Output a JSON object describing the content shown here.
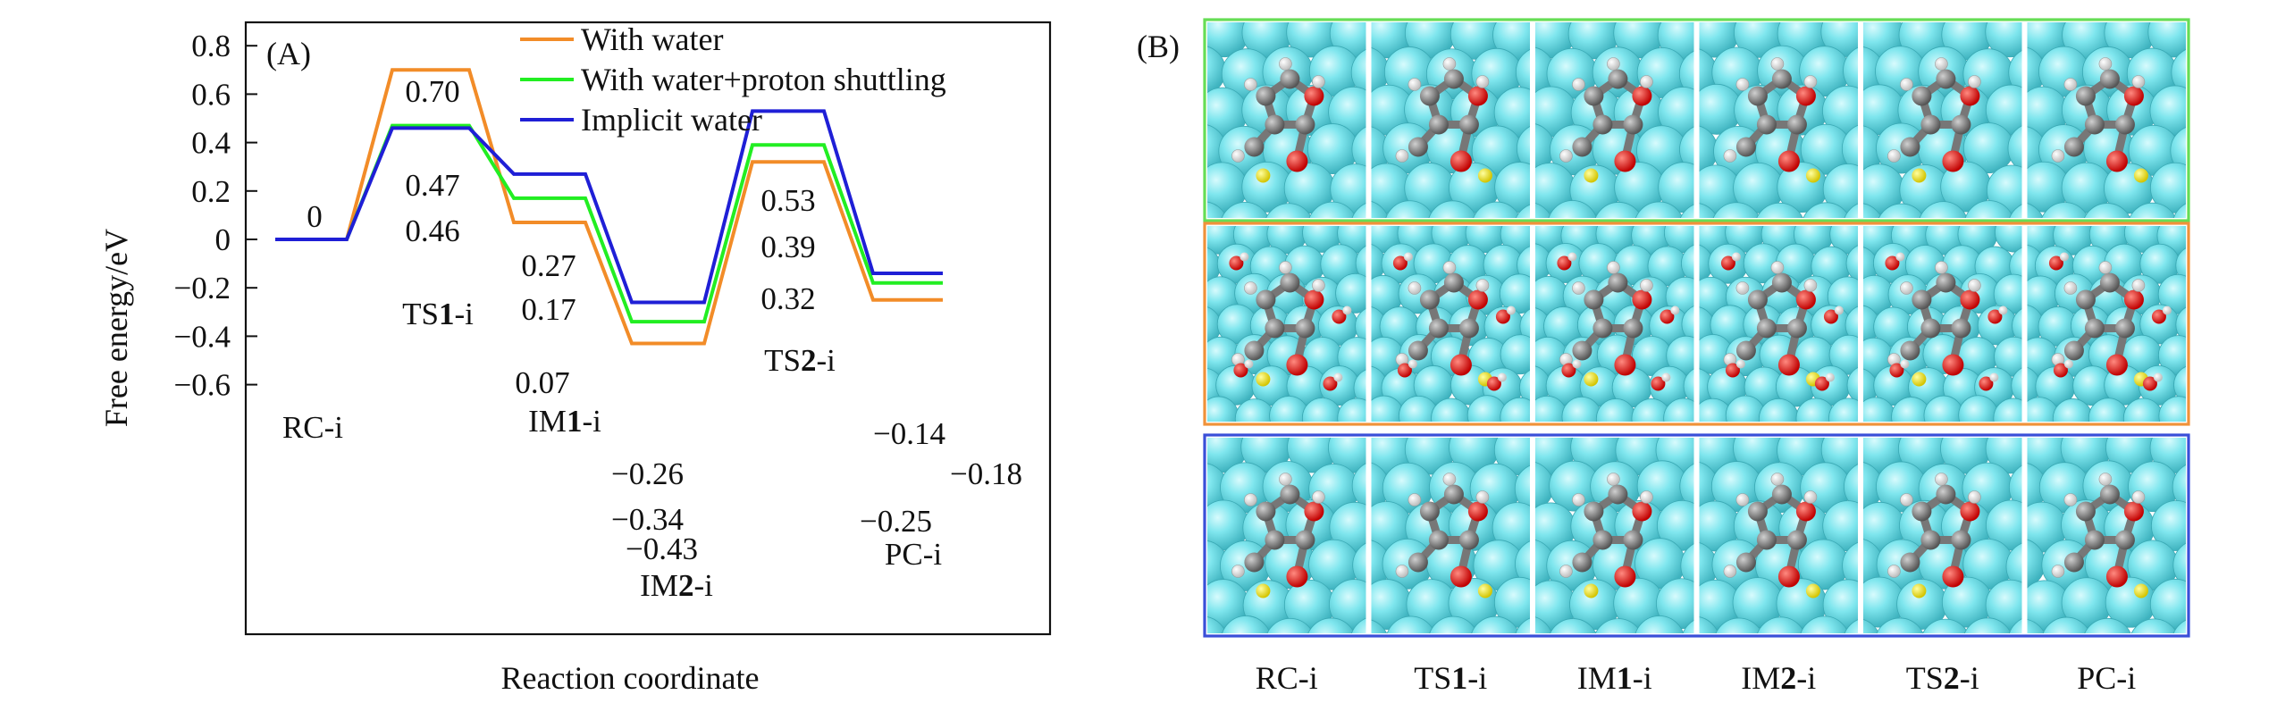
{
  "panel_a": {
    "label": "(A)",
    "chart_data": {
      "type": "line",
      "subtype": "energy-profile",
      "title": "",
      "xlabel": "Reaction coordinate",
      "ylabel": "Free energy/eV",
      "ylim": [
        -0.6,
        0.9
      ],
      "yticks": [
        -0.6,
        -0.4,
        -0.2,
        0,
        0.2,
        0.4,
        0.6,
        0.8
      ],
      "ytick_labels": [
        "−0.6",
        "−0.4",
        "−0.2",
        "0",
        "0.2",
        "0.4",
        "0.6",
        "0.8"
      ],
      "states": [
        "RC-i",
        "TS1-i",
        "IM1-i",
        "IM2-i",
        "TS2-i",
        "PC-i"
      ],
      "state_labels": [
        {
          "pre": "RC-i",
          "bold": "",
          "post": ""
        },
        {
          "pre": "TS",
          "bold": "1",
          "post": "-i"
        },
        {
          "pre": "IM",
          "bold": "1",
          "post": "-i"
        },
        {
          "pre": "IM",
          "bold": "2",
          "post": "-i"
        },
        {
          "pre": "TS",
          "bold": "2",
          "post": "-i"
        },
        {
          "pre": "PC-i",
          "bold": "",
          "post": ""
        }
      ],
      "series": [
        {
          "name": "With water",
          "color": "#f28c28",
          "values": [
            0,
            0.7,
            0.07,
            -0.43,
            0.32,
            -0.25
          ]
        },
        {
          "name": "With water+proton shuttling",
          "color": "#22ee22",
          "values": [
            0,
            0.47,
            0.17,
            -0.34,
            0.39,
            -0.18
          ]
        },
        {
          "name": "Implicit water",
          "color": "#1f1fd6",
          "values": [
            0,
            0.46,
            0.27,
            -0.26,
            0.53,
            -0.14
          ]
        }
      ],
      "value_labels": [
        {
          "text": "0"
        },
        {
          "text": "0.70"
        },
        {
          "text": "0.47"
        },
        {
          "text": "0.46"
        },
        {
          "text": "0.27"
        },
        {
          "text": "0.17"
        },
        {
          "text": "0.07"
        },
        {
          "text": "−0.26"
        },
        {
          "text": "−0.34"
        },
        {
          "text": "−0.43"
        },
        {
          "text": "0.53"
        },
        {
          "text": "0.39"
        },
        {
          "text": "0.32"
        },
        {
          "text": "−0.14"
        },
        {
          "text": "−0.18"
        },
        {
          "text": "−0.25"
        }
      ],
      "legend": "top-right",
      "grid": false
    }
  },
  "panel_b": {
    "label": "(B)",
    "rows": [
      {
        "name": "with-water-proton-shuttling",
        "border": "#66dd55"
      },
      {
        "name": "with-water",
        "border": "#f0923a"
      },
      {
        "name": "implicit-water",
        "border": "#3a4fd8"
      }
    ],
    "columns": [
      "RC-i",
      "TS1-i",
      "IM1-i",
      "IM2-i",
      "TS2-i",
      "PC-i"
    ],
    "column_labels": [
      {
        "pre": "RC-i",
        "bold": "",
        "post": ""
      },
      {
        "pre": "TS",
        "bold": "1",
        "post": "-i"
      },
      {
        "pre": "IM",
        "bold": "1",
        "post": "-i"
      },
      {
        "pre": "IM",
        "bold": "2",
        "post": "-i"
      },
      {
        "pre": "TS",
        "bold": "2",
        "post": "-i"
      },
      {
        "pre": "PC-i",
        "bold": "",
        "post": ""
      }
    ]
  }
}
